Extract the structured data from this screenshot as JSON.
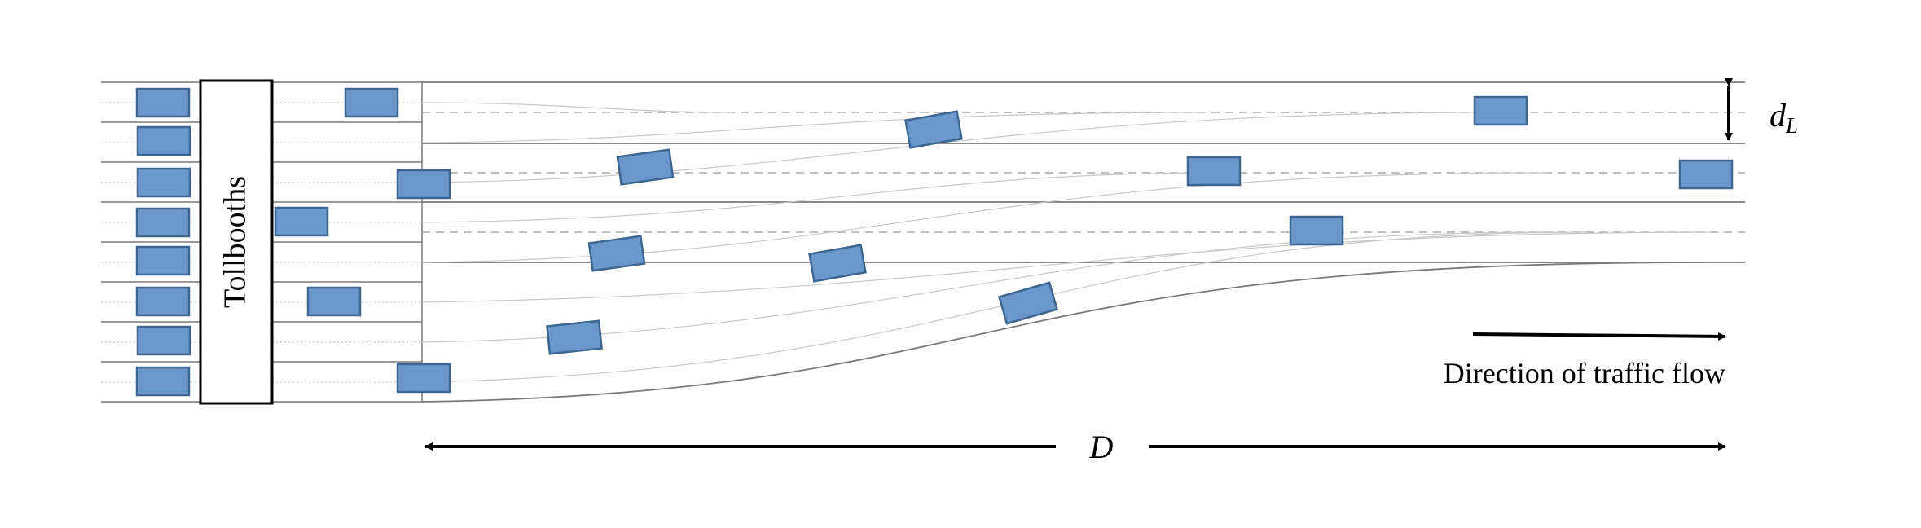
{
  "diagram": {
    "tollbooth_label": "Tollbooths",
    "direction_label": "Direction of traffic flow",
    "dimension_D": "D",
    "lane_width_symbol": "d",
    "lane_width_subscript": "L",
    "colors": {
      "vehicle_fill": "#6a97cc",
      "vehicle_stroke": "#3d6690",
      "line": "#7a7a7a",
      "lane_divider": "#aaaaaa",
      "path": "#c8c8c8",
      "arrow": "#000000"
    },
    "entry_lanes": 8,
    "exit_lanes": 3,
    "vehicle_count": 25
  }
}
